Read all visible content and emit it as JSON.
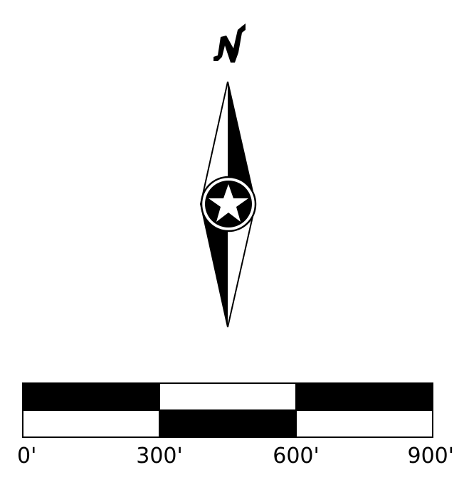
{
  "north_arrow": {
    "letter": "N",
    "icon": "north-star-compass-icon",
    "fill_color": "#000000",
    "background_color": "#ffffff"
  },
  "scale_bar": {
    "unit_symbol": "'",
    "segment_length": 300,
    "ticks": [
      {
        "value": 0,
        "label": "0'"
      },
      {
        "value": 300,
        "label": "300'"
      },
      {
        "value": 600,
        "label": "600'"
      },
      {
        "value": 900,
        "label": "900'"
      }
    ],
    "colors": {
      "dark": "#000000",
      "light": "#ffffff"
    }
  }
}
